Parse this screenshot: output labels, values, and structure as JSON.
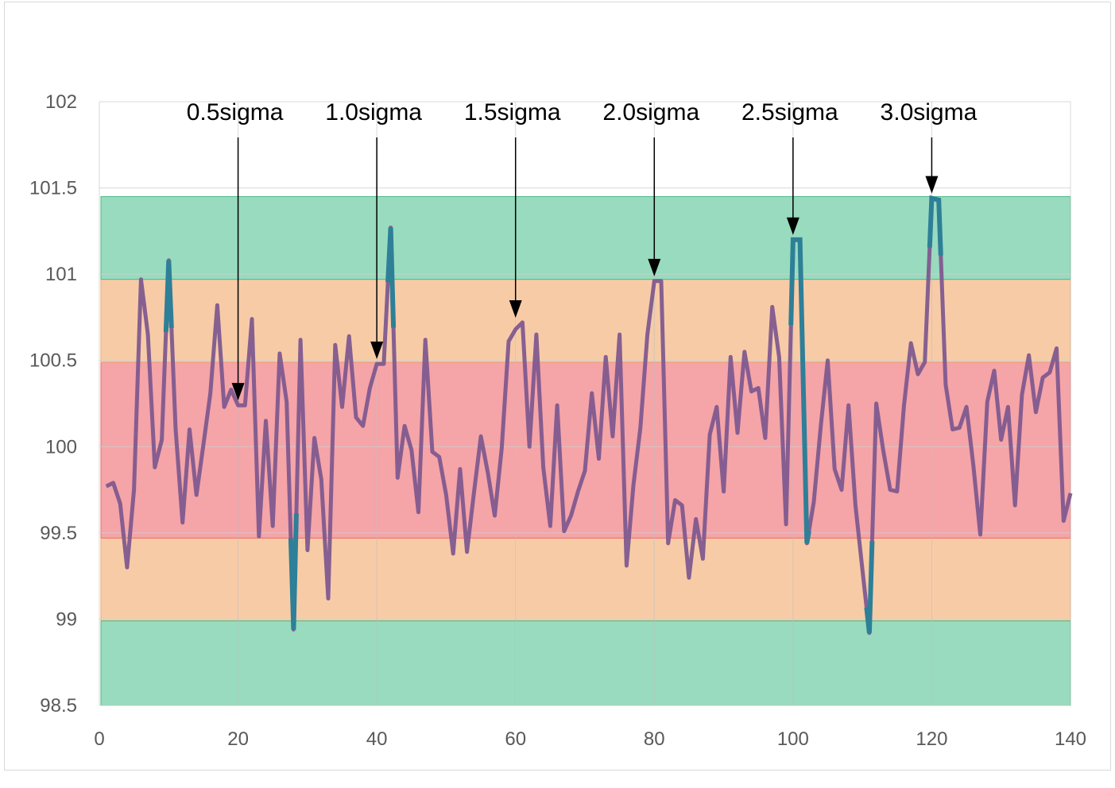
{
  "chart_data": {
    "type": "line",
    "title": "",
    "xlabel": "",
    "ylabel": "",
    "xlim": [
      0,
      140
    ],
    "ylim": [
      98.5,
      102
    ],
    "x_ticks": [
      "0",
      "20",
      "40",
      "60",
      "80",
      "100",
      "120",
      "140"
    ],
    "y_ticks": [
      "98.5",
      "99",
      "99.5",
      "100",
      "100.5",
      "101",
      "101.5",
      "102"
    ],
    "grid": true,
    "legend": "none",
    "bands": [
      {
        "from": 98.99,
        "to": 99.47,
        "color": "#f8cba7",
        "edge": "#f0a868"
      },
      {
        "from": 99.47,
        "to": 100.49,
        "color": "#f5a4a8",
        "edge": "#e8706f"
      },
      {
        "from": 100.49,
        "to": 100.97,
        "color": "#f8cba7",
        "edge": "#f0a868"
      },
      {
        "from": 98.5,
        "to": 98.99,
        "color": "#98dbbe",
        "edge": "#4cb98a"
      },
      {
        "from": 100.97,
        "to": 101.45,
        "color": "#98dbbe",
        "edge": "#4cb98a"
      }
    ],
    "series": [
      {
        "color": "#7f5a8e",
        "x": [
          1,
          2,
          3,
          4,
          5,
          6,
          7,
          8,
          9,
          10,
          11,
          12,
          13,
          14,
          15,
          16,
          17,
          18,
          19,
          20,
          21,
          22,
          23,
          24,
          25,
          26,
          27,
          28,
          29,
          30,
          31,
          32,
          33,
          34,
          35,
          36,
          37,
          38,
          39,
          40,
          41,
          42,
          43,
          44,
          45,
          46,
          47,
          48,
          49,
          50,
          51,
          52,
          53,
          54,
          55,
          56,
          57,
          58,
          59,
          60,
          61,
          62,
          63,
          64,
          65,
          66,
          67,
          68,
          69,
          70,
          71,
          72,
          73,
          74,
          75,
          76,
          77,
          78,
          79,
          80,
          81,
          82,
          83,
          84,
          85,
          86,
          87,
          88,
          89,
          90,
          91,
          92,
          93,
          94,
          95,
          96,
          97,
          98,
          99,
          100,
          101,
          102,
          103,
          104,
          105,
          106,
          107,
          108,
          109,
          110,
          111,
          112,
          113,
          114,
          115,
          116,
          117,
          118,
          119,
          120,
          121,
          122,
          123,
          124,
          125,
          126,
          127,
          128,
          129,
          130,
          131,
          132,
          133,
          134,
          135,
          136,
          137,
          138,
          139,
          140
        ],
        "values": [
          99.77,
          99.79,
          99.67,
          99.3,
          99.75,
          100.97,
          100.65,
          99.88,
          100.04,
          101.08,
          100.1,
          99.56,
          100.1,
          99.72,
          100.01,
          100.31,
          100.82,
          100.23,
          100.33,
          100.24,
          100.24,
          100.74,
          99.48,
          100.15,
          99.54,
          100.54,
          100.26,
          98.94,
          100.62,
          99.4,
          100.05,
          99.81,
          99.12,
          100.59,
          100.23,
          100.64,
          100.17,
          100.12,
          100.34,
          100.48,
          100.48,
          101.27,
          99.82,
          100.12,
          99.98,
          99.62,
          100.62,
          99.97,
          99.94,
          99.72,
          99.38,
          99.87,
          99.39,
          99.73,
          100.06,
          99.85,
          99.6,
          99.99,
          100.61,
          100.68,
          100.72,
          100.0,
          100.65,
          99.88,
          99.54,
          100.24,
          99.51,
          99.6,
          99.74,
          99.86,
          100.31,
          99.93,
          100.52,
          100.06,
          100.65,
          99.31,
          99.78,
          100.11,
          100.65,
          100.96,
          100.96,
          99.44,
          99.69,
          99.66,
          99.24,
          99.58,
          99.35,
          100.07,
          100.23,
          99.74,
          100.52,
          100.08,
          100.55,
          100.32,
          100.34,
          100.05,
          100.81,
          100.52,
          99.55,
          101.2,
          101.2,
          99.44,
          99.68,
          100.12,
          100.5,
          99.87,
          99.75,
          100.24,
          99.66,
          99.29,
          98.92,
          100.25,
          99.98,
          99.75,
          99.74,
          100.24,
          100.6,
          100.42,
          100.49,
          101.44,
          101.43,
          100.36,
          100.1,
          100.11,
          100.23,
          99.89,
          99.49,
          100.26,
          100.44,
          100.04,
          100.23,
          99.66,
          100.3,
          100.53,
          100.2,
          100.4,
          100.43,
          100.57,
          99.57,
          99.73
        ]
      }
    ],
    "highlight_segments": [
      {
        "x": [
          9.6,
          10.4
        ],
        "color": "#2e7f98"
      },
      {
        "x": [
          27.6,
          28.4
        ],
        "color": "#2e7f98"
      },
      {
        "x": [
          41.6,
          42.4
        ],
        "color": "#2e7f98"
      },
      {
        "x": [
          99.7,
          102.3
        ],
        "color": "#2e7f98"
      },
      {
        "x": [
          110.6,
          111.4
        ],
        "color": "#2e7f98"
      },
      {
        "x": [
          119.7,
          121.3
        ],
        "color": "#2e7f98"
      }
    ],
    "annotations": [
      {
        "text": "0.5sigma",
        "x": 20,
        "y": 100.24
      },
      {
        "text": "1.0sigma",
        "x": 40,
        "y": 100.48
      },
      {
        "text": "1.5sigma",
        "x": 60,
        "y": 100.72
      },
      {
        "text": "2.0sigma",
        "x": 80,
        "y": 100.96
      },
      {
        "text": "2.5sigma",
        "x": 100,
        "y": 101.2
      },
      {
        "text": "3.0sigma",
        "x": 120,
        "y": 101.44
      }
    ]
  }
}
